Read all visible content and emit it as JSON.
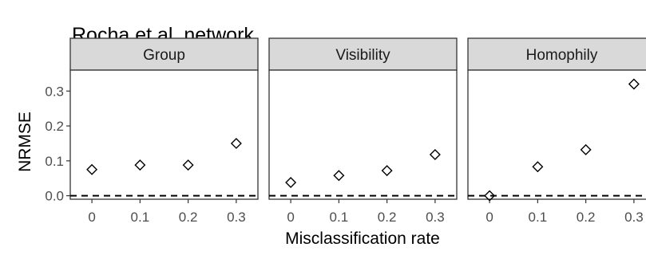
{
  "chart_data": {
    "type": "scatter",
    "title": "Rocha et al. network",
    "xlabel": "Misclassification rate",
    "ylabel": "NRMSE",
    "x_ticks": [
      "0",
      "0.1",
      "0.2",
      "0.3"
    ],
    "y_ticks": [
      "0.0",
      "0.1",
      "0.2",
      "0.3"
    ],
    "xlim": [
      -0.045,
      0.345
    ],
    "ylim": [
      -0.01,
      0.36
    ],
    "reference_line": {
      "y": 0,
      "style": "dashed"
    },
    "marker": "open-diamond",
    "grid": false,
    "facets": [
      {
        "label": "Group",
        "x": [
          0,
          0.1,
          0.2,
          0.3
        ],
        "y": [
          0.075,
          0.088,
          0.088,
          0.15
        ]
      },
      {
        "label": "Visibility",
        "x": [
          0,
          0.1,
          0.2,
          0.3
        ],
        "y": [
          0.038,
          0.058,
          0.072,
          0.118
        ]
      },
      {
        "label": "Homophily",
        "x": [
          0,
          0.1,
          0.2,
          0.3
        ],
        "y": [
          0.0,
          0.083,
          0.132,
          0.32
        ]
      }
    ]
  }
}
